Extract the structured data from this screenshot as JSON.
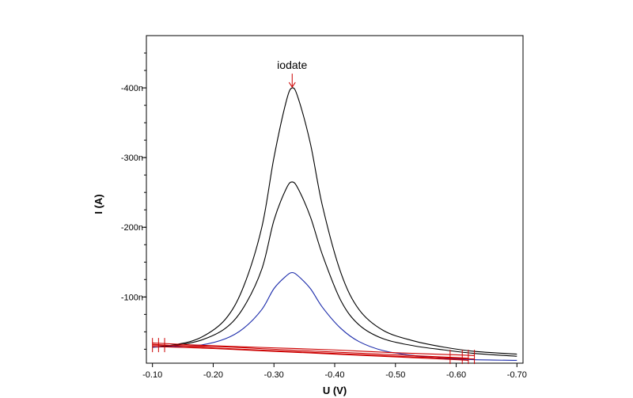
{
  "chart_data": {
    "type": "line",
    "title": "",
    "xlabel": "U (V)",
    "ylabel": "I (A)",
    "xlim": [
      -0.09,
      -0.71
    ],
    "ylim": [
      -5,
      -475
    ],
    "x_ticks": [
      {
        "value": -0.1,
        "label": "-0.10"
      },
      {
        "value": -0.2,
        "label": "-0.20"
      },
      {
        "value": -0.3,
        "label": "-0.30"
      },
      {
        "value": -0.4,
        "label": "-0.40"
      },
      {
        "value": -0.5,
        "label": "-0.50"
      },
      {
        "value": -0.6,
        "label": "-0.60"
      },
      {
        "value": -0.7,
        "label": "-0.70"
      }
    ],
    "y_ticks": [
      {
        "value": -100,
        "label": "-100n"
      },
      {
        "value": -200,
        "label": "-200n"
      },
      {
        "value": -300,
        "label": "-300n"
      },
      {
        "value": -400,
        "label": "-400n"
      }
    ],
    "grid": false,
    "legend": "none",
    "annotation": {
      "label": "iodate",
      "x": -0.33,
      "y": -400
    },
    "series": [
      {
        "color": "#000000",
        "x": [
          -0.1,
          -0.14,
          -0.18,
          -0.22,
          -0.25,
          -0.28,
          -0.3,
          -0.32,
          -0.33,
          -0.34,
          -0.36,
          -0.38,
          -0.41,
          -0.44,
          -0.48,
          -0.53,
          -0.58,
          -0.63,
          -0.7
        ],
        "y": [
          -28,
          -32,
          -42,
          -68,
          -115,
          -200,
          -300,
          -380,
          -400,
          -385,
          -320,
          -230,
          -135,
          -82,
          -52,
          -37,
          -28,
          -22,
          -18
        ]
      },
      {
        "color": "#000000",
        "x": [
          -0.1,
          -0.14,
          -0.18,
          -0.22,
          -0.25,
          -0.28,
          -0.3,
          -0.32,
          -0.33,
          -0.34,
          -0.36,
          -0.38,
          -0.41,
          -0.44,
          -0.48,
          -0.53,
          -0.58,
          -0.63,
          -0.7
        ],
        "y": [
          -28,
          -31,
          -38,
          -55,
          -85,
          -140,
          -210,
          -255,
          -265,
          -255,
          -215,
          -160,
          -95,
          -60,
          -40,
          -30,
          -24,
          -19,
          -15
        ]
      },
      {
        "color": "#1a2aaa",
        "x": [
          -0.1,
          -0.14,
          -0.18,
          -0.22,
          -0.25,
          -0.28,
          -0.3,
          -0.32,
          -0.33,
          -0.34,
          -0.36,
          -0.38,
          -0.41,
          -0.44,
          -0.48,
          -0.53,
          -0.58,
          -0.63,
          -0.7
        ],
        "y": [
          -28,
          -29,
          -31,
          -40,
          -55,
          -82,
          -112,
          -130,
          -135,
          -130,
          -112,
          -85,
          -55,
          -36,
          -23,
          -16,
          -12,
          -10,
          -9
        ]
      },
      {
        "color": "#cc0000",
        "x": [
          -0.1,
          -0.2,
          -0.3,
          -0.4,
          -0.5,
          -0.6,
          -0.62
        ],
        "y": [
          -31,
          -29,
          -25,
          -21,
          -17,
          -13,
          -12
        ]
      },
      {
        "color": "#cc0000",
        "x": [
          -0.1,
          -0.2,
          -0.3,
          -0.4,
          -0.5,
          -0.6,
          -0.62
        ],
        "y": [
          -29,
          -26,
          -22,
          -18,
          -14,
          -10,
          -9
        ]
      },
      {
        "color": "#cc0000",
        "x": [
          -0.1,
          -0.2,
          -0.3,
          -0.4,
          -0.5,
          -0.6,
          -0.63
        ],
        "y": [
          -34,
          -30,
          -27,
          -24,
          -20,
          -17,
          -16
        ]
      },
      {
        "color": "#cc0000",
        "x": [
          -0.1,
          -0.2,
          -0.3,
          -0.4,
          -0.5,
          -0.6,
          -0.63
        ],
        "y": [
          -32,
          -27,
          -23,
          -19,
          -15,
          -12,
          -11
        ]
      }
    ],
    "markers": {
      "color": "#cc0000",
      "x": [
        -0.1,
        -0.11,
        -0.12,
        -0.59,
        -0.61,
        -0.62,
        -0.63
      ]
    }
  }
}
